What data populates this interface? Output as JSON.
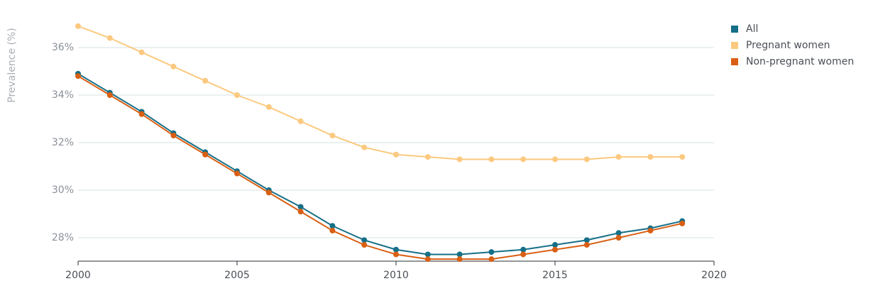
{
  "chart_data": {
    "type": "line",
    "title": "",
    "ylabel": "Prevalence (%)",
    "xlabel": "",
    "xlim": [
      2000,
      2020
    ],
    "ylim": [
      27,
      37
    ],
    "xticks": [
      2000,
      2005,
      2010,
      2015,
      2020
    ],
    "yticks": [
      28,
      30,
      32,
      34,
      36
    ],
    "ytick_labels": [
      "28%",
      "30%",
      "32%",
      "34%",
      "36%"
    ],
    "grid": "horizontal",
    "legend_position": "top-right",
    "x": [
      2000,
      2001,
      2002,
      2003,
      2004,
      2005,
      2006,
      2007,
      2008,
      2009,
      2010,
      2011,
      2012,
      2013,
      2014,
      2015,
      2016,
      2017,
      2018,
      2019
    ],
    "series": [
      {
        "name": "All",
        "color": "#156f87",
        "values": [
          34.9,
          34.1,
          33.3,
          32.4,
          31.6,
          30.8,
          30.0,
          29.3,
          28.5,
          27.9,
          27.5,
          27.3,
          27.3,
          27.4,
          27.5,
          27.7,
          27.9,
          28.2,
          28.4,
          28.7
        ]
      },
      {
        "name": "Pregnant women",
        "color": "#fbc97f",
        "values": [
          36.9,
          36.4,
          35.8,
          35.2,
          34.6,
          34.0,
          33.5,
          32.9,
          32.3,
          31.8,
          31.5,
          31.4,
          31.3,
          31.3,
          31.3,
          31.3,
          31.3,
          31.4,
          31.4,
          31.4
        ]
      },
      {
        "name": "Non-pregnant women",
        "color": "#d95f13",
        "values": [
          34.8,
          34.0,
          33.2,
          32.3,
          31.5,
          30.7,
          29.9,
          29.1,
          28.3,
          27.7,
          27.3,
          27.1,
          27.1,
          27.1,
          27.3,
          27.5,
          27.7,
          28.0,
          28.3,
          28.6
        ]
      }
    ]
  }
}
